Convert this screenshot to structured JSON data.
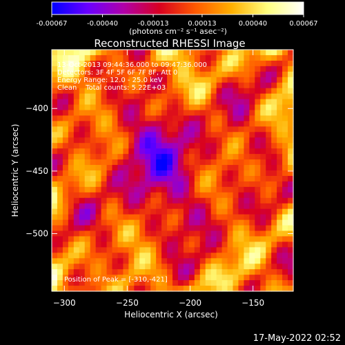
{
  "colorbar": {
    "tick_labels": [
      "-0.00067",
      "-0.00040",
      "-0.00013",
      "0.00013",
      "0.00040",
      "0.00067"
    ],
    "tick_values": [
      -0.00067,
      -0.0004,
      -0.00013,
      0.00013,
      0.0004,
      0.00067
    ],
    "range": [
      -0.00067,
      0.00067
    ],
    "units_label": "(photons cm⁻² s⁻¹ asec⁻²)",
    "stops": [
      "#0000ff",
      "#6a00ff",
      "#b000a8",
      "#d80020",
      "#ff5a00",
      "#ffb000",
      "#ffff80",
      "#ffffff"
    ]
  },
  "chart_data": {
    "type": "heatmap",
    "title": "Reconstructed RHESSI Image",
    "xlabel": "Heliocentric X (arcsec)",
    "ylabel": "Heliocentric Y (arcsec)",
    "xlim": [
      -310,
      -118
    ],
    "ylim": [
      -546,
      -353
    ],
    "x_ticks": [
      -300,
      -250,
      -200,
      -150
    ],
    "y_ticks": [
      -400,
      -450,
      -500
    ],
    "x_tick_labels": [
      "−300",
      "−250",
      "−200",
      "−150"
    ],
    "y_tick_labels": [
      "−400",
      "−450",
      "−500"
    ],
    "info_lines": [
      "13-Oct-2013 09:44:36.000 to 09:47:36.000",
      "Detectors: 3F 4F 5F 6F 7F 8F, Att 0",
      "Energy Range: 12.0 - 25.0 keV",
      "Clean    Total counts: 5.22E+03"
    ],
    "peak_label": "Position of Peak = [-310,-421]",
    "peak": [
      -310,
      -421
    ],
    "grid": false,
    "colormap": "blue-purple-red-yellow-white"
  },
  "footer": {
    "timestamp": "17-May-2022 02:52"
  }
}
